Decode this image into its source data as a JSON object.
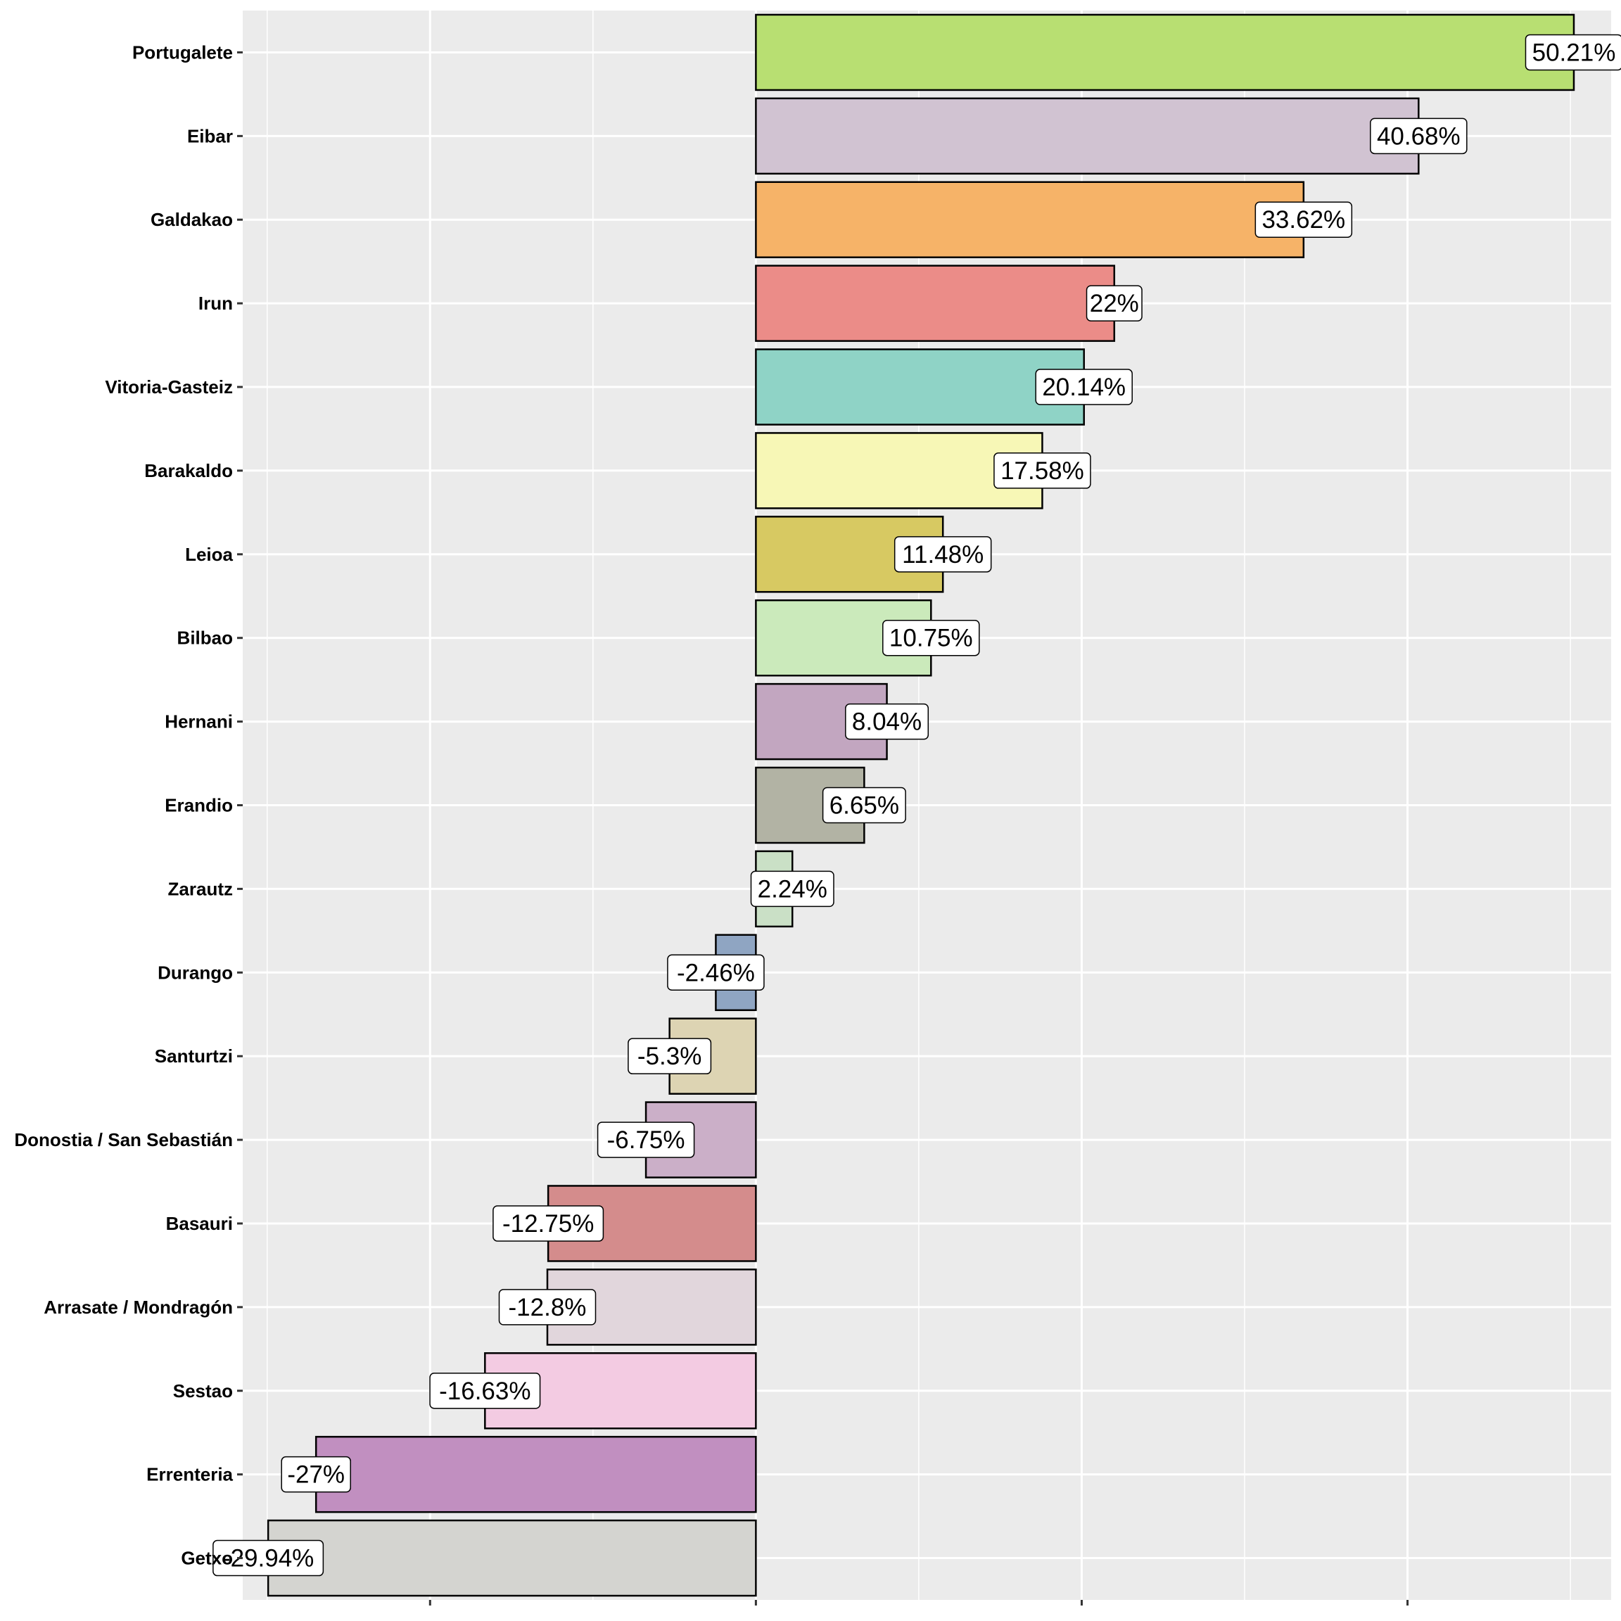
{
  "chart_data": {
    "type": "bar",
    "orientation": "horizontal",
    "title": "",
    "xlabel": "",
    "ylabel": "",
    "xlim": [
      -31.5,
      52.5
    ],
    "x_major_ticks": [
      -20,
      0,
      20,
      40
    ],
    "categories": [
      "Portugalete",
      "Eibar",
      "Galdakao",
      "Irun",
      "Vitoria-Gasteiz",
      "Barakaldo",
      "Leioa",
      "Bilbao",
      "Hernani",
      "Erandio",
      "Zarautz",
      "Durango",
      "Santurtzi",
      "Donostia / San Sebastián",
      "Basauri",
      "Arrasate / Mondragón",
      "Sestao",
      "Errenteria",
      "Getxo"
    ],
    "values": [
      50.21,
      40.68,
      33.62,
      22,
      20.14,
      17.58,
      11.48,
      10.75,
      8.04,
      6.65,
      2.24,
      -2.46,
      -5.3,
      -6.75,
      -12.75,
      -12.8,
      -16.63,
      -27,
      -29.94
    ],
    "labels": [
      "50.21%",
      "40.68%",
      "33.62%",
      "22%",
      "20.14%",
      "17.58%",
      "11.48%",
      "10.75%",
      "8.04%",
      "6.65%",
      "2.24%",
      "-2.46%",
      "-5.3%",
      "-6.75%",
      "-12.75%",
      "-12.8%",
      "-16.63%",
      "-27%",
      "-29.94%"
    ],
    "colors": [
      "#b8df72",
      "#d1c3d2",
      "#f6b368",
      "#eb8c88",
      "#8fd3c6",
      "#f7f7b6",
      "#d7c962",
      "#cbeabb",
      "#c2a6c0",
      "#b2b3a4",
      "#cae0c6",
      "#8fa5c2",
      "#ddd4b3",
      "#cbafc8",
      "#d48c8c",
      "#e1d6dc",
      "#f3cbe2",
      "#c18fc0",
      "#d4d4d0"
    ],
    "grid": true,
    "legend": "none"
  }
}
